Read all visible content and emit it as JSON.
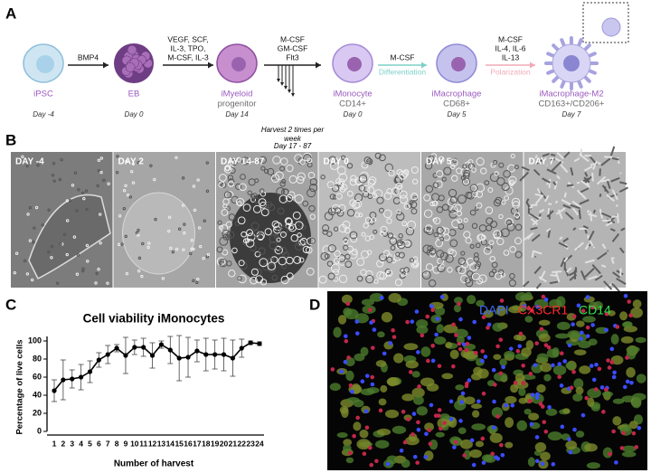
{
  "figure": {
    "panel_a": {
      "label": "A",
      "stages": [
        {
          "name": [
            "iPSC"
          ],
          "day": "Day -4"
        },
        {
          "name": [
            "EB"
          ],
          "day": "Day 0"
        },
        {
          "name": [
            "iMyeloid",
            "progenitor"
          ],
          "day": "Day 14"
        },
        {
          "name": [
            "iMonocyte",
            "CD14+"
          ],
          "day": "Day 0"
        },
        {
          "name": [
            "iMacrophage",
            "CD68+"
          ],
          "day": "Day 5"
        },
        {
          "name": [
            "iMacrophage-M2",
            "CD163+/CD206+"
          ],
          "day": "Day 7"
        }
      ],
      "steps": [
        {
          "factors": [
            "BMP4"
          ]
        },
        {
          "factors": [
            "VEGF, SCF,",
            "IL-3, TPO,",
            "M-CSF, IL-3"
          ]
        },
        {
          "factors": [
            "M-CSF",
            "GM-CSF",
            "Flt3"
          ],
          "note": [
            "Harvest 2 times per",
            "week"
          ],
          "days": "Day 17 - 87"
        },
        {
          "factors": [
            "M-CSF"
          ],
          "process": "Differentiation"
        },
        {
          "factors": [
            "M-CSF",
            "IL-4, IL-6",
            "IL-13"
          ],
          "process": "Polarization"
        }
      ]
    },
    "panel_b": {
      "label": "B",
      "tiles": [
        "DAY -4",
        "DAY 2",
        "DAY 14-87",
        "DAY 0",
        "DAY 5",
        "DAY 7"
      ]
    },
    "panel_c": {
      "label": "C"
    },
    "panel_d": {
      "label": "D",
      "stains": [
        {
          "name": "DAPI",
          "color": "#3d6bff"
        },
        {
          "name": "CX3CR1",
          "color": "#ff2a2a"
        },
        {
          "name": "CD14",
          "color": "#33e04a"
        }
      ]
    }
  },
  "chart_data": {
    "type": "line",
    "title": "Cell viability iMonocytes",
    "x_label": "Number of harvest",
    "y_label": "Percentage of live cells",
    "categories": [
      "1",
      "2",
      "3",
      "4",
      "5",
      "6",
      "7",
      "8",
      "9",
      "10",
      "11",
      "12",
      "13",
      "14",
      "15",
      "16",
      "17",
      "18",
      "19",
      "20",
      "21",
      "22",
      "23",
      "24"
    ],
    "series": [
      {
        "color": "#000000",
        "values": [
          45,
          57,
          58,
          60,
          66,
          79,
          85,
          92,
          84,
          93,
          93,
          84,
          96,
          90,
          81,
          82,
          89,
          85,
          85,
          85,
          81,
          92,
          98,
          97
        ],
        "errors": [
          12,
          22,
          10,
          14,
          12,
          8,
          10,
          4,
          20,
          8,
          10,
          14,
          4,
          15,
          25,
          22,
          12,
          18,
          16,
          18,
          20,
          10,
          2,
          2
        ]
      }
    ],
    "ylim": [
      0,
      105
    ],
    "yticks": [
      0,
      20,
      40,
      60,
      80,
      100
    ]
  }
}
